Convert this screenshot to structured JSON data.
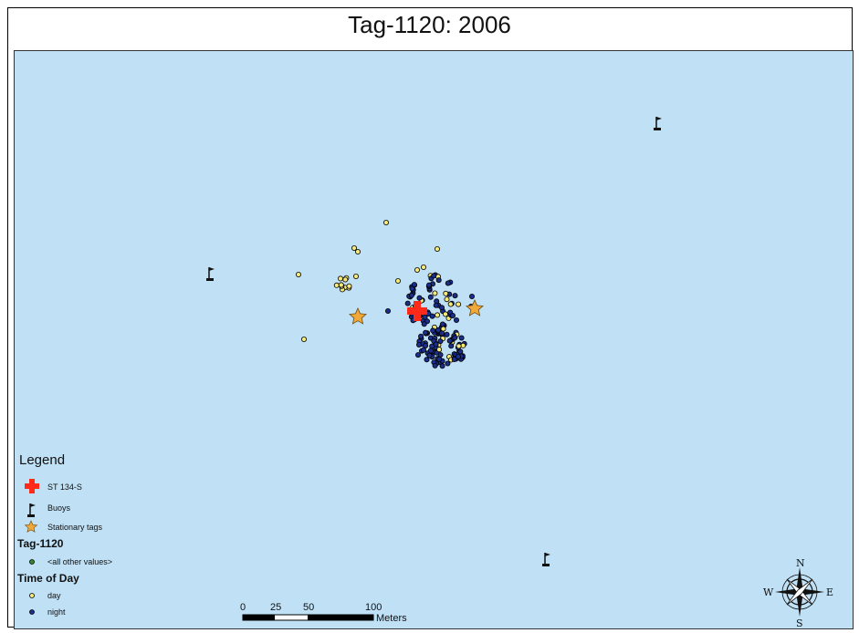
{
  "map": {
    "title": "Tag-1120: 2006",
    "water_color": "#bfe0f5",
    "platform": {
      "name": "ST 134-S",
      "icon": "red-cross-icon",
      "color": "#ff2a1a"
    },
    "buoy_icon": "buoy-flag-icon",
    "stationary_tag_color": "#f0a838",
    "day_color": "#f5e97a",
    "night_color": "#1a2f8c"
  },
  "legend": {
    "heading": "Legend",
    "items": {
      "platform": "ST 134-S",
      "buoys": "Buoys",
      "stationary": "Stationary tags"
    },
    "group_tag": "Tag-1120",
    "other_values": "<all other values>",
    "group_time": "Time of Day",
    "day": "day",
    "night": "night"
  },
  "scale_bar": {
    "ticks": [
      "0",
      "25",
      "50",
      "100"
    ],
    "unit": "Meters"
  },
  "north_arrow": {
    "n": "N",
    "s": "S",
    "e": "E",
    "w": "W"
  }
}
